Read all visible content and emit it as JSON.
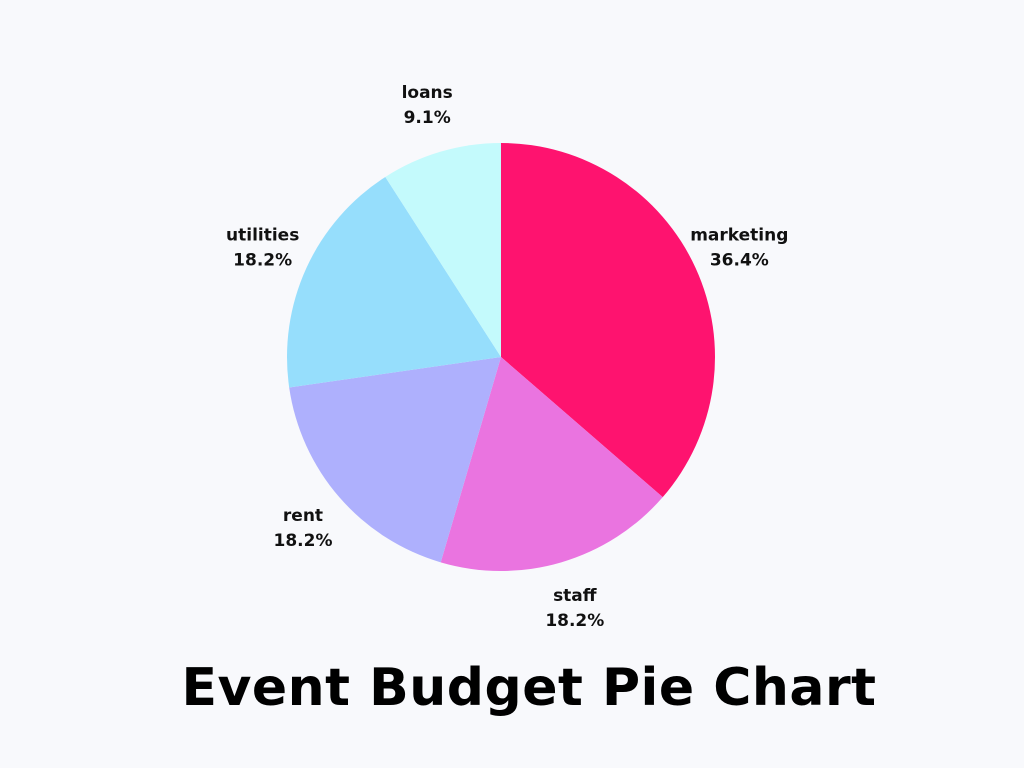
{
  "chart_data": {
    "type": "pie",
    "title": "Event Budget Pie Chart",
    "start_angle_deg": 0,
    "direction": "clockwise",
    "slices": [
      {
        "label": "marketing",
        "value": 36.4,
        "value_label": "36.4%",
        "color": "#fe136f"
      },
      {
        "label": "staff",
        "value": 18.2,
        "value_label": "18.2%",
        "color": "#ea74e0"
      },
      {
        "label": "rent",
        "value": 18.2,
        "value_label": "18.2%",
        "color": "#aeb0fd"
      },
      {
        "label": "utilities",
        "value": 18.2,
        "value_label": "18.2%",
        "color": "#96defc"
      },
      {
        "label": "loans",
        "value": 9.1,
        "value_label": "9.1%",
        "color": "#c4fafc"
      }
    ]
  }
}
